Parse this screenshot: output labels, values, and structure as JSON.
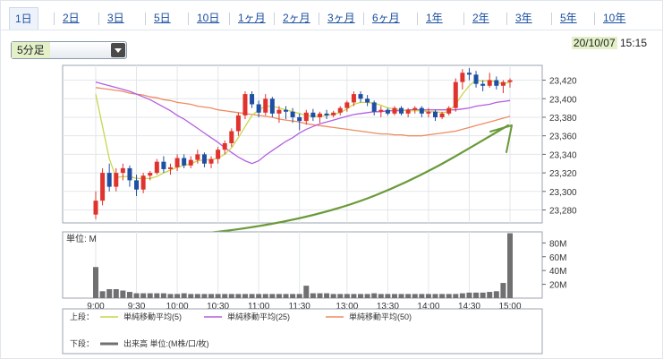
{
  "tabs": [
    {
      "label": "1日",
      "active": true
    },
    {
      "label": "2日"
    },
    {
      "label": "3日"
    },
    {
      "label": "5日"
    },
    {
      "label": "10日"
    },
    {
      "label": "1ヶ月"
    },
    {
      "label": "2ヶ月"
    },
    {
      "label": "3ヶ月"
    },
    {
      "label": "6ヶ月"
    },
    {
      "label": "1年"
    },
    {
      "label": "2年"
    },
    {
      "label": "3年"
    },
    {
      "label": "5年"
    },
    {
      "label": "10年"
    }
  ],
  "interval_select": {
    "value": "5分足"
  },
  "datetime": {
    "date": "20/10/07",
    "time": "15:15"
  },
  "colors": {
    "up": "#e0332e",
    "down": "#1f4fa3",
    "ma5": "#c9d64a",
    "ma25": "#b45fe0",
    "ma50": "#ee8c62",
    "volume": "#707070",
    "annotation": "#6a9a3a"
  },
  "chart_data": [
    {
      "type": "candlestick",
      "x": [
        "9:00",
        "9:05",
        "9:10",
        "9:15",
        "9:20",
        "9:25",
        "9:30",
        "9:35",
        "9:40",
        "9:45",
        "9:50",
        "9:55",
        "10:00",
        "10:05",
        "10:10",
        "10:15",
        "10:20",
        "10:25",
        "10:30",
        "10:35",
        "10:40",
        "10:45",
        "10:50",
        "10:55",
        "11:00",
        "11:05",
        "11:10",
        "11:15",
        "11:20",
        "11:25",
        "11:30",
        "12:30",
        "12:35",
        "12:40",
        "12:45",
        "12:50",
        "12:55",
        "13:00",
        "13:05",
        "13:10",
        "13:15",
        "13:20",
        "13:25",
        "13:30",
        "13:35",
        "13:40",
        "13:45",
        "13:50",
        "13:55",
        "14:00",
        "14:05",
        "14:10",
        "14:15",
        "14:20",
        "14:25",
        "14:30",
        "14:35",
        "14:40",
        "14:45",
        "14:50",
        "14:55",
        "15:00"
      ],
      "ohlc": [
        [
          23275,
          23300,
          23270,
          23290
        ],
        [
          23290,
          23325,
          23285,
          23320
        ],
        [
          23320,
          23330,
          23300,
          23305
        ],
        [
          23305,
          23325,
          23300,
          23320
        ],
        [
          23320,
          23330,
          23312,
          23325
        ],
        [
          23325,
          23328,
          23305,
          23312
        ],
        [
          23312,
          23318,
          23295,
          23302
        ],
        [
          23302,
          23320,
          23298,
          23317
        ],
        [
          23317,
          23322,
          23312,
          23320
        ],
        [
          23320,
          23335,
          23318,
          23332
        ],
        [
          23332,
          23338,
          23320,
          23324
        ],
        [
          23324,
          23330,
          23318,
          23326
        ],
        [
          23326,
          23340,
          23322,
          23336
        ],
        [
          23336,
          23340,
          23325,
          23328
        ],
        [
          23328,
          23338,
          23325,
          23334
        ],
        [
          23334,
          23345,
          23330,
          23340
        ],
        [
          23340,
          23342,
          23326,
          23330
        ],
        [
          23330,
          23338,
          23325,
          23335
        ],
        [
          23335,
          23348,
          23330,
          23345
        ],
        [
          23345,
          23355,
          23340,
          23352
        ],
        [
          23352,
          23368,
          23348,
          23365
        ],
        [
          23365,
          23385,
          23360,
          23382
        ],
        [
          23382,
          23408,
          23378,
          23405
        ],
        [
          23405,
          23408,
          23390,
          23394
        ],
        [
          23394,
          23398,
          23380,
          23385
        ],
        [
          23385,
          23405,
          23382,
          23400
        ],
        [
          23400,
          23402,
          23380,
          23384
        ],
        [
          23384,
          23392,
          23374,
          23388
        ],
        [
          23388,
          23392,
          23378,
          23386
        ],
        [
          23386,
          23390,
          23374,
          23380
        ],
        [
          23380,
          23384,
          23366,
          23376
        ],
        [
          23376,
          23388,
          23372,
          23385
        ],
        [
          23385,
          23389,
          23376,
          23380
        ],
        [
          23380,
          23386,
          23374,
          23384
        ],
        [
          23384,
          23388,
          23378,
          23382
        ],
        [
          23382,
          23387,
          23380,
          23385
        ],
        [
          23385,
          23392,
          23382,
          23390
        ],
        [
          23390,
          23398,
          23386,
          23396
        ],
        [
          23396,
          23408,
          23392,
          23405
        ],
        [
          23405,
          23408,
          23396,
          23400
        ],
        [
          23400,
          23404,
          23392,
          23396
        ],
        [
          23396,
          23398,
          23382,
          23386
        ],
        [
          23386,
          23392,
          23380,
          23388
        ],
        [
          23388,
          23390,
          23382,
          23384
        ],
        [
          23384,
          23392,
          23382,
          23390
        ],
        [
          23390,
          23392,
          23382,
          23384
        ],
        [
          23384,
          23390,
          23380,
          23388
        ],
        [
          23388,
          23392,
          23384,
          23390
        ],
        [
          23390,
          23392,
          23380,
          23384
        ],
        [
          23384,
          23390,
          23380,
          23386
        ],
        [
          23386,
          23388,
          23376,
          23380
        ],
        [
          23380,
          23386,
          23378,
          23384
        ],
        [
          23384,
          23392,
          23382,
          23390
        ],
        [
          23390,
          23422,
          23386,
          23418
        ],
        [
          23418,
          23432,
          23410,
          23428
        ],
        [
          23428,
          23433,
          23420,
          23426
        ],
        [
          23426,
          23430,
          23412,
          23416
        ],
        [
          23416,
          23420,
          23408,
          23414
        ],
        [
          23414,
          23428,
          23412,
          23420
        ],
        [
          23420,
          23424,
          23410,
          23414
        ],
        [
          23414,
          23420,
          23406,
          23418
        ],
        [
          23418,
          23422,
          23412,
          23420
        ]
      ],
      "ma5": [
        23405,
        23370,
        23335,
        23315,
        23316,
        23316,
        23314,
        23314,
        23314,
        23316,
        23320,
        23323,
        23326,
        23328,
        23330,
        23333,
        23334,
        23334,
        23336,
        23340,
        23347,
        23358,
        23370,
        23382,
        23388,
        23392,
        23392,
        23390,
        23388,
        23386,
        23384,
        23382,
        23381,
        23381,
        23382,
        23383,
        23385,
        23389,
        23394,
        23396,
        23396,
        23395,
        23393,
        23390,
        23389,
        23388,
        23387,
        23387,
        23387,
        23386,
        23386,
        23385,
        23386,
        23394,
        23405,
        23414,
        23420,
        23419,
        23420,
        23418,
        23416,
        23418
      ],
      "ma25": [
        23418,
        23416,
        23414,
        23412,
        23410,
        23408,
        23405,
        23402,
        23399,
        23395,
        23391,
        23387,
        23382,
        23378,
        23373,
        23368,
        23363,
        23358,
        23353,
        23347,
        23342,
        23337,
        23333,
        23330,
        23333,
        23339,
        23344,
        23349,
        23354,
        23358,
        23363,
        23367,
        23370,
        23373,
        23375,
        23377,
        23379,
        23381,
        23383,
        23384,
        23385,
        23386,
        23386,
        23387,
        23387,
        23387,
        23388,
        23388,
        23388,
        23388,
        23388,
        23388,
        23388,
        23388,
        23389,
        23390,
        23392,
        23393,
        23394,
        23396,
        23397,
        23398
      ],
      "ma50": [
        23412,
        23411,
        23410,
        23409,
        23408,
        23406,
        23405,
        23404,
        23402,
        23401,
        23399,
        23398,
        23396,
        23395,
        23394,
        23392,
        23391,
        23390,
        23388,
        23387,
        23386,
        23385,
        23384,
        23383,
        23382,
        23381,
        23380,
        23378,
        23377,
        23376,
        23375,
        23373,
        23372,
        23371,
        23370,
        23369,
        23368,
        23367,
        23366,
        23365,
        23364,
        23363,
        23362,
        23362,
        23361,
        23361,
        23360,
        23360,
        23360,
        23361,
        23362,
        23363,
        23364,
        23365,
        23367,
        23369,
        23371,
        23373,
        23375,
        23377,
        23379,
        23381
      ],
      "yticks": [
        23280,
        23300,
        23320,
        23340,
        23360,
        23380,
        23400,
        23420
      ],
      "ylim": [
        23266,
        23436
      ],
      "yticks_labels": [
        "23,280",
        "23,300",
        "23,320",
        "23,340",
        "23,360",
        "23,380",
        "23,400",
        "23,420"
      ]
    },
    {
      "type": "bar",
      "title": "単位: M",
      "values": [
        45,
        10,
        13,
        13,
        11,
        9,
        7,
        7,
        7,
        7,
        7,
        6,
        6,
        7,
        6,
        6,
        6,
        6,
        6,
        6,
        6,
        6,
        6,
        6,
        6,
        6,
        6,
        6,
        6,
        6,
        6,
        18,
        7,
        7,
        7,
        6,
        6,
        6,
        6,
        6,
        6,
        7,
        6,
        6,
        6,
        6,
        6,
        6,
        6,
        6,
        6,
        6,
        6,
        6,
        7,
        8,
        8,
        8,
        9,
        10,
        22,
        94
      ],
      "ylim": [
        0,
        96
      ],
      "yticks_labels": [
        "20M",
        "40M",
        "60M",
        "80M"
      ],
      "yticks": [
        20,
        40,
        60,
        80
      ]
    }
  ],
  "x_tick_labels": [
    "9:00",
    "9:30",
    "10:00",
    "10:30",
    "11:00",
    "11:30",
    "13:00",
    "13:30",
    "14:00",
    "14:30",
    "15:00"
  ],
  "legend": {
    "upper_label": "上段：",
    "lower_label": "下段：",
    "ma5": "単純移動平均(5)",
    "ma25": "単純移動平均(25)",
    "ma50": "単純移動平均(50)",
    "volume": "出来高 単位:(M株/口/枚)"
  }
}
